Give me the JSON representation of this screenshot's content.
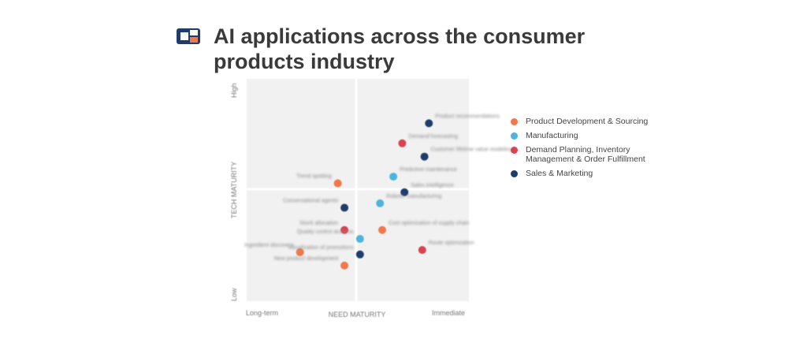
{
  "title": "AI applications across the consumer products industry",
  "colors": {
    "product_dev": "#f0784a",
    "manufacturing": "#4fb4dc",
    "demand": "#d9424f",
    "sales": "#1f3d6b"
  },
  "legend": [
    {
      "label": "Product Development & Sourcing",
      "key": "product_dev"
    },
    {
      "label": "Manufacturing",
      "key": "manufacturing"
    },
    {
      "label": "Demand Planning, Inventory Management & Order Fulfillment",
      "key": "demand"
    },
    {
      "label": "Sales & Marketing",
      "key": "sales"
    }
  ],
  "chart_data": {
    "type": "scatter",
    "xlabel": "NEED MATURITY",
    "ylabel": "TECH MATURITY",
    "x_ticks": [
      "Long-term",
      "Immediate"
    ],
    "y_ticks": [
      "Low",
      "High"
    ],
    "xlim": [
      0,
      10
    ],
    "ylim": [
      0,
      10
    ],
    "points": [
      {
        "label": "Product recommendations",
        "x": 8.2,
        "y": 8.0,
        "cat": "sales"
      },
      {
        "label": "Demand forecasting",
        "x": 7.0,
        "y": 7.1,
        "cat": "demand"
      },
      {
        "label": "Customer lifetime value modeling",
        "x": 8.0,
        "y": 6.5,
        "cat": "sales"
      },
      {
        "label": "Predictive maintenance",
        "x": 6.6,
        "y": 5.6,
        "cat": "manufacturing"
      },
      {
        "label": "Trend spotting",
        "x": 4.1,
        "y": 5.3,
        "cat": "product_dev"
      },
      {
        "label": "Sales intelligence",
        "x": 7.1,
        "y": 4.9,
        "cat": "sales"
      },
      {
        "label": "Conversational agents",
        "x": 4.4,
        "y": 4.2,
        "cat": "sales"
      },
      {
        "label": "Robotic manufacturing",
        "x": 6.0,
        "y": 4.4,
        "cat": "manufacturing"
      },
      {
        "label": "Stock allocation",
        "x": 4.4,
        "y": 3.2,
        "cat": "demand"
      },
      {
        "label": "Cost optimization of supply chain",
        "x": 6.1,
        "y": 3.2,
        "cat": "product_dev"
      },
      {
        "label": "Quality control analysis",
        "x": 5.1,
        "y": 2.8,
        "cat": "manufacturing"
      },
      {
        "label": "Route optimization",
        "x": 7.9,
        "y": 2.3,
        "cat": "demand"
      },
      {
        "label": "Ingredient discovery",
        "x": 2.4,
        "y": 2.2,
        "cat": "product_dev"
      },
      {
        "label": "Visualization of promotions",
        "x": 5.1,
        "y": 2.1,
        "cat": "sales"
      },
      {
        "label": "New product development",
        "x": 4.4,
        "y": 1.6,
        "cat": "product_dev"
      }
    ]
  }
}
